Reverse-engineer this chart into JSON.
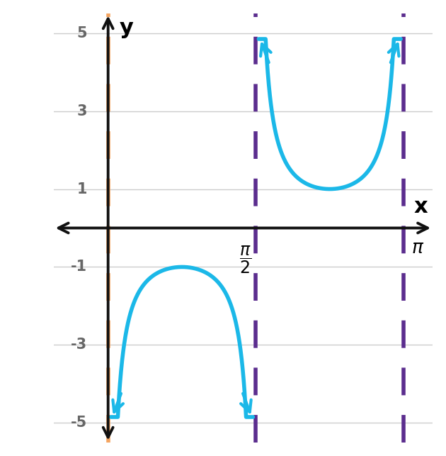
{
  "xlim": [
    -0.58,
    3.45
  ],
  "ylim": [
    -5.5,
    5.5
  ],
  "yticks": [
    -5,
    -3,
    -1,
    1,
    3,
    5
  ],
  "pi": 3.141592653589793,
  "pi_half": 1.5707963267948966,
  "curve_color": "#1BB8E8",
  "curve_lw": 4.0,
  "asym_orange_color": "#F4A460",
  "asym_orange_lw": 4.0,
  "asym_purple_color": "#5B2D8E",
  "asym_purple_lw": 4.0,
  "grid_color": "#CCCCCC",
  "grid_lw": 1.0,
  "background": "#FFFFFF",
  "axis_color": "#111111",
  "axis_lw": 2.8,
  "tick_label_color": "#666666",
  "tick_fontsize": 15,
  "axis_label_fontsize": 22,
  "clip_val": 4.85,
  "eps": 0.03,
  "arrow_mutation_scale": 25,
  "curve_arrow_scale": 28
}
